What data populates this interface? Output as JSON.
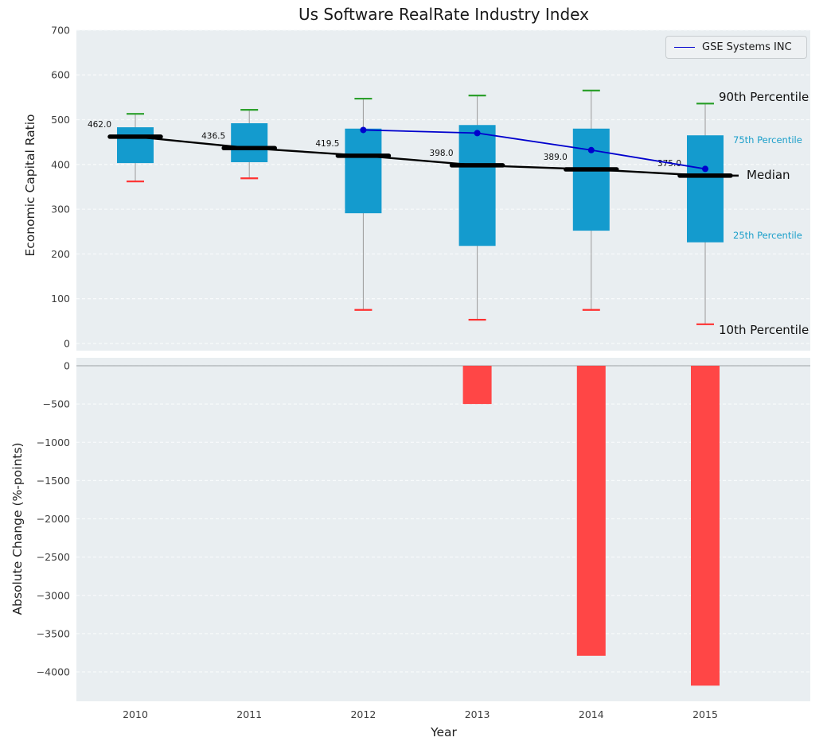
{
  "title": "Us Software RealRate Industry Index",
  "legend": {
    "label": "GSE Systems INC"
  },
  "axes": {
    "top_ylabel": "Economic Capital Ratio",
    "bottom_ylabel": "Absolute Change (%-points)",
    "xlabel": "Year"
  },
  "annotations": {
    "p90": "90th Percentile",
    "p75": "75th Percentile",
    "median": "Median",
    "p25": "25th Percentile",
    "p10": "10th Percentile"
  },
  "chart_data": {
    "type": "boxplot+line+bar",
    "categories": [
      "2010",
      "2011",
      "2012",
      "2013",
      "2014",
      "2015"
    ],
    "top": {
      "ylabel": "Economic Capital Ratio",
      "ylim": [
        0,
        700
      ],
      "yticks": [
        0,
        100,
        200,
        300,
        400,
        500,
        600,
        700
      ],
      "boxes": [
        {
          "year": "2010",
          "p10": 362,
          "p25": 403,
          "median": 462.0,
          "p75": 483,
          "p90": 513
        },
        {
          "year": "2011",
          "p10": 369,
          "p25": 405,
          "median": 436.5,
          "p75": 492,
          "p90": 522
        },
        {
          "year": "2012",
          "p10": 75,
          "p25": 291,
          "median": 419.5,
          "p75": 480,
          "p90": 547
        },
        {
          "year": "2013",
          "p10": 53,
          "p25": 218,
          "median": 398.0,
          "p75": 488,
          "p90": 554
        },
        {
          "year": "2014",
          "p10": 75,
          "p25": 252,
          "median": 389.0,
          "p75": 480,
          "p90": 565
        },
        {
          "year": "2015",
          "p10": 43,
          "p25": 226,
          "median": 375.0,
          "p75": 465,
          "p90": 536
        }
      ],
      "median_labels": [
        "462.0",
        "436.5",
        "419.5",
        "398.0",
        "389.0",
        "375.0"
      ],
      "series": {
        "name": "GSE Systems INC",
        "x": [
          "2012",
          "2013",
          "2014",
          "2015"
        ],
        "values": [
          477,
          470,
          432,
          390
        ]
      }
    },
    "bottom": {
      "ylabel": "Absolute Change (%-points)",
      "yticks": [
        0,
        -500,
        -1000,
        -1500,
        -2000,
        -2500,
        -3000,
        -3500,
        -4000
      ],
      "bars": {
        "x": [
          "2013",
          "2014",
          "2015"
        ],
        "values": [
          -500,
          -3790,
          -4180
        ]
      }
    },
    "colors": {
      "box_fill": "#149bce",
      "p90_cap": "#2ca02c",
      "p10_cap": "#ff3030",
      "bar_fill": "#ff4646",
      "median": "#000000",
      "series_line": "#0000cd",
      "whisker": "#9a9a9a",
      "plot_bg": "#e9eef1",
      "grid": "#f8fafb",
      "percentile_label": "#1b9fca"
    }
  }
}
